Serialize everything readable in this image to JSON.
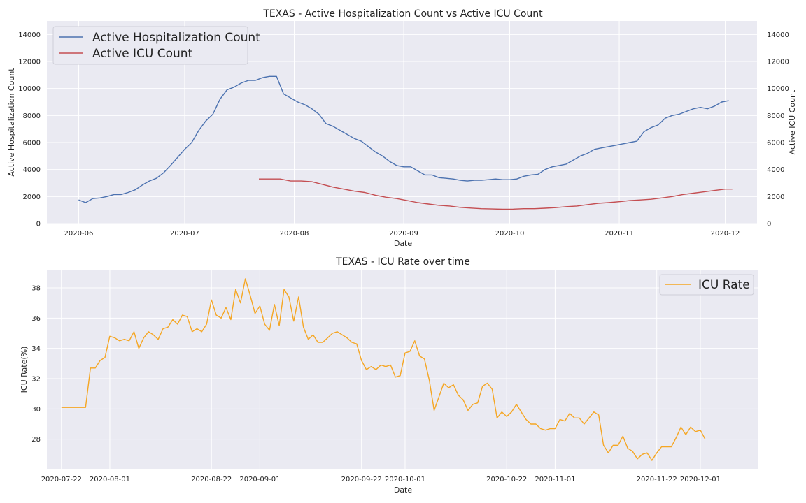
{
  "colors": {
    "hospitalization": "#4c72b0",
    "icu_count": "#c44e52",
    "icu_rate": "#f5a623",
    "plot_bg": "#eaeaf2",
    "grid": "#ffffff"
  },
  "chart_data": [
    {
      "type": "line",
      "title": "TEXAS - Active Hospitalization Count vs Active ICU Count",
      "xlabel": "Date",
      "ylabel": "Active Hospitalization Count",
      "ylabel_right": "Active ICU Count",
      "ylim": [
        0,
        15000
      ],
      "yticks": [
        "0",
        "2000",
        "4000",
        "6000",
        "8000",
        "10000",
        "12000",
        "14000"
      ],
      "xticks": [
        "2020-06",
        "2020-07",
        "2020-08",
        "2020-09",
        "2020-10",
        "2020-11",
        "2020-12"
      ],
      "legend_position": "top-left",
      "grid": true,
      "series": [
        {
          "name": "Active Hospitalization Count",
          "x": [
            "2020-06-01",
            "2020-06-03",
            "2020-06-05",
            "2020-06-07",
            "2020-06-09",
            "2020-06-11",
            "2020-06-13",
            "2020-06-15",
            "2020-06-17",
            "2020-06-19",
            "2020-06-21",
            "2020-06-23",
            "2020-06-25",
            "2020-06-27",
            "2020-06-29",
            "2020-07-01",
            "2020-07-03",
            "2020-07-05",
            "2020-07-07",
            "2020-07-09",
            "2020-07-11",
            "2020-07-13",
            "2020-07-15",
            "2020-07-17",
            "2020-07-19",
            "2020-07-21",
            "2020-07-23",
            "2020-07-25",
            "2020-07-27",
            "2020-07-29",
            "2020-07-31",
            "2020-08-02",
            "2020-08-04",
            "2020-08-06",
            "2020-08-08",
            "2020-08-10",
            "2020-08-12",
            "2020-08-14",
            "2020-08-16",
            "2020-08-18",
            "2020-08-20",
            "2020-08-22",
            "2020-08-24",
            "2020-08-26",
            "2020-08-28",
            "2020-08-30",
            "2020-09-01",
            "2020-09-03",
            "2020-09-05",
            "2020-09-07",
            "2020-09-09",
            "2020-09-11",
            "2020-09-13",
            "2020-09-15",
            "2020-09-17",
            "2020-09-19",
            "2020-09-21",
            "2020-09-23",
            "2020-09-25",
            "2020-09-27",
            "2020-09-29",
            "2020-10-01",
            "2020-10-03",
            "2020-10-05",
            "2020-10-07",
            "2020-10-09",
            "2020-10-11",
            "2020-10-13",
            "2020-10-15",
            "2020-10-17",
            "2020-10-19",
            "2020-10-21",
            "2020-10-23",
            "2020-10-25",
            "2020-10-27",
            "2020-10-29",
            "2020-10-31",
            "2020-11-02",
            "2020-11-04",
            "2020-11-06",
            "2020-11-08",
            "2020-11-10",
            "2020-11-12",
            "2020-11-14",
            "2020-11-16",
            "2020-11-18",
            "2020-11-20",
            "2020-11-22",
            "2020-11-24",
            "2020-11-26",
            "2020-11-28",
            "2020-11-30",
            "2020-12-02"
          ],
          "values": [
            1750,
            1550,
            1850,
            1900,
            2000,
            2150,
            2150,
            2300,
            2500,
            2850,
            3150,
            3350,
            3750,
            4300,
            4900,
            5500,
            6000,
            6900,
            7600,
            8100,
            9200,
            9900,
            10100,
            10400,
            10600,
            10600,
            10800,
            10900,
            10900,
            9600,
            9300,
            9000,
            8800,
            8500,
            8100,
            7400,
            7200,
            6900,
            6600,
            6300,
            6100,
            5700,
            5300,
            5000,
            4600,
            4300,
            4200,
            4200,
            3900,
            3600,
            3600,
            3400,
            3350,
            3300,
            3200,
            3150,
            3200,
            3200,
            3250,
            3300,
            3250,
            3250,
            3300,
            3500,
            3600,
            3650,
            4000,
            4200,
            4300,
            4400,
            4700,
            5000,
            5200,
            5500,
            5600,
            5700,
            5800,
            5900,
            6000,
            6100,
            6800,
            7100,
            7300,
            7800,
            8000,
            8100,
            8300,
            8500,
            8600,
            8500,
            8700,
            9000,
            9100
          ]
        },
        {
          "name": "Active ICU Count",
          "x": [
            "2020-07-22",
            "2020-07-25",
            "2020-07-28",
            "2020-07-31",
            "2020-08-03",
            "2020-08-06",
            "2020-08-09",
            "2020-08-12",
            "2020-08-15",
            "2020-08-18",
            "2020-08-21",
            "2020-08-24",
            "2020-08-27",
            "2020-08-30",
            "2020-09-02",
            "2020-09-05",
            "2020-09-08",
            "2020-09-11",
            "2020-09-14",
            "2020-09-17",
            "2020-09-20",
            "2020-09-23",
            "2020-09-26",
            "2020-09-29",
            "2020-10-02",
            "2020-10-05",
            "2020-10-08",
            "2020-10-11",
            "2020-10-14",
            "2020-10-17",
            "2020-10-20",
            "2020-10-23",
            "2020-10-26",
            "2020-10-29",
            "2020-11-01",
            "2020-11-04",
            "2020-11-07",
            "2020-11-10",
            "2020-11-13",
            "2020-11-16",
            "2020-11-19",
            "2020-11-22",
            "2020-11-25",
            "2020-11-28",
            "2020-12-01",
            "2020-12-03"
          ],
          "values": [
            3300,
            3300,
            3300,
            3150,
            3150,
            3100,
            2900,
            2700,
            2550,
            2400,
            2300,
            2100,
            1950,
            1850,
            1700,
            1550,
            1450,
            1350,
            1300,
            1200,
            1150,
            1100,
            1080,
            1060,
            1070,
            1100,
            1100,
            1140,
            1180,
            1250,
            1300,
            1400,
            1500,
            1550,
            1620,
            1700,
            1750,
            1800,
            1900,
            2000,
            2150,
            2250,
            2350,
            2450,
            2550,
            2550
          ]
        }
      ]
    },
    {
      "type": "line",
      "title": "TEXAS - ICU Rate over time",
      "xlabel": "Date",
      "ylabel": "ICU Rate(%)",
      "ylim": [
        26,
        39.2
      ],
      "yticks": [
        "28",
        "30",
        "32",
        "34",
        "36",
        "38"
      ],
      "xticks": [
        "2020-07-22",
        "2020-08-01",
        "2020-08-22",
        "2020-09-01",
        "2020-09-22",
        "2020-10-01",
        "2020-10-22",
        "2020-11-01",
        "2020-11-22",
        "2020-12-01"
      ],
      "legend_position": "top-right",
      "grid": true,
      "series": [
        {
          "name": "ICU Rate",
          "start": "2020-07-22",
          "step_days": 1,
          "values": [
            30.1,
            30.1,
            30.1,
            30.1,
            30.1,
            30.1,
            32.7,
            32.7,
            33.2,
            33.4,
            34.8,
            34.7,
            34.5,
            34.6,
            34.5,
            35.1,
            34.0,
            34.7,
            35.1,
            34.9,
            34.6,
            35.3,
            35.4,
            35.9,
            35.6,
            36.2,
            36.1,
            35.1,
            35.3,
            35.1,
            35.6,
            37.2,
            36.2,
            36.0,
            36.7,
            35.9,
            37.9,
            37.0,
            38.6,
            37.5,
            36.3,
            36.8,
            35.6,
            35.2,
            36.9,
            35.5,
            37.9,
            37.4,
            35.8,
            37.4,
            35.4,
            34.6,
            34.9,
            34.4,
            34.4,
            34.7,
            35.0,
            35.1,
            34.9,
            34.7,
            34.4,
            34.3,
            33.2,
            32.6,
            32.8,
            32.6,
            32.9,
            32.8,
            32.9,
            32.1,
            32.2,
            33.7,
            33.8,
            34.5,
            33.5,
            33.3,
            31.9,
            29.9,
            30.8,
            31.7,
            31.4,
            31.6,
            30.9,
            30.6,
            29.9,
            30.3,
            30.4,
            31.5,
            31.7,
            31.3,
            29.4,
            29.8,
            29.5,
            29.8,
            30.3,
            29.8,
            29.3,
            29.0,
            29.0,
            28.7,
            28.6,
            28.7,
            28.7,
            29.3,
            29.2,
            29.7,
            29.4,
            29.4,
            29.0,
            29.4,
            29.8,
            29.6,
            27.6,
            27.1,
            27.6,
            27.6,
            28.2,
            27.4,
            27.2,
            26.7,
            27.0,
            27.1,
            26.6,
            27.1,
            27.5,
            27.5,
            27.5,
            28.1,
            28.8,
            28.3,
            28.8,
            28.5,
            28.6,
            28.0
          ]
        }
      ]
    }
  ]
}
